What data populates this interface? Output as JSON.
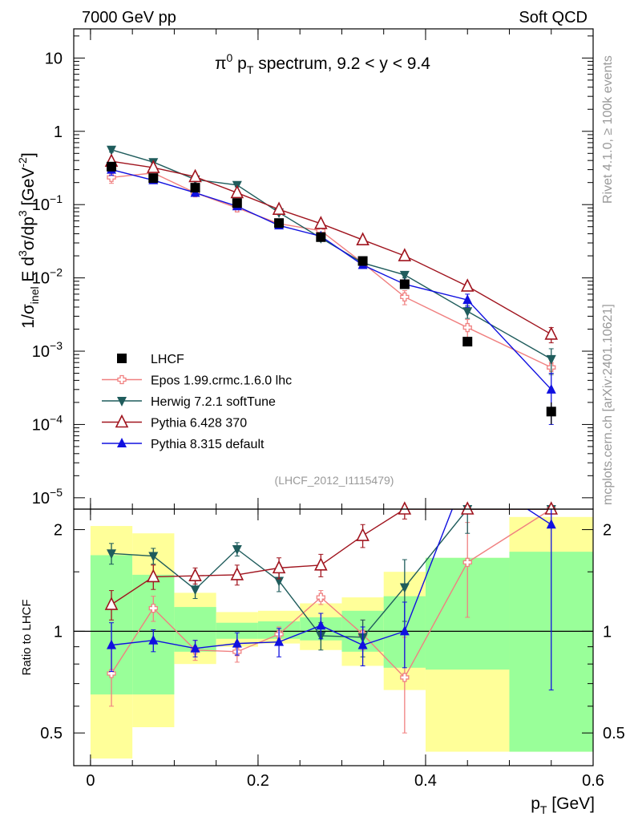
{
  "header": {
    "energy": "7000 GeV pp",
    "process": "Soft QCD"
  },
  "side": {
    "rivet": "Rivet 4.1.0, ≥ 100k events",
    "mcplots": "mcplots.cern.ch [arXiv:2401.10621]"
  },
  "analysis_id": "(LHCF_2012_I1115479)",
  "chart_data": {
    "type": "scatter",
    "title": "π⁰ p_T spectrum, 9.2 < y < 9.4",
    "title_parts": {
      "pre": "π",
      "sup": "0",
      "mid": " p",
      "sub": "T",
      "post": " spectrum, 9.2 < y < 9.4"
    },
    "xlabel": "p_T [GeV]",
    "xlabel_parts": {
      "main": "p",
      "sub": "T",
      "post": " [GeV]"
    },
    "ylabel": "1/σ_inel E d³σ/dp³ [GeV⁻²]",
    "ylabel_parts": {
      "a": "1/σ",
      "b": "inel",
      "c": " E d",
      "d": "3",
      "e": "σ/dp",
      "f": "3",
      "g": " [GeV",
      "h": "-2",
      "i": "]"
    },
    "ratio_ylabel": "Ratio to LHCF",
    "xlim": [
      -0.02,
      0.6
    ],
    "ylim_log": [
      7e-06,
      25
    ],
    "ratio_ylim": [
      0.4,
      2.3
    ],
    "x_ticks": [
      0,
      0.2,
      0.4,
      0.6
    ],
    "x_tick_labels": [
      "0",
      "0.2",
      "0.4",
      "0.6"
    ],
    "y_ticks": [
      1e-05,
      0.0001,
      0.001,
      0.01,
      0.1,
      1,
      10
    ],
    "y_tick_labels": [
      {
        "b": "10",
        "e": "−5"
      },
      {
        "b": "10",
        "e": "−4"
      },
      {
        "b": "10",
        "e": "−3"
      },
      {
        "b": "10",
        "e": "−2"
      },
      {
        "b": "10",
        "e": "−1"
      },
      {
        "b": "1",
        "e": ""
      },
      {
        "b": "10",
        "e": ""
      }
    ],
    "ratio_ticks": [
      0.5,
      1,
      2
    ],
    "ratio_tick_labels": [
      "0.5",
      "1",
      "2"
    ],
    "bins": [
      [
        0.0,
        0.05
      ],
      [
        0.05,
        0.1
      ],
      [
        0.1,
        0.15
      ],
      [
        0.15,
        0.2
      ],
      [
        0.2,
        0.25
      ],
      [
        0.25,
        0.3
      ],
      [
        0.3,
        0.35
      ],
      [
        0.35,
        0.4
      ],
      [
        0.4,
        0.5
      ],
      [
        0.5,
        0.6
      ]
    ],
    "x": [
      0.025,
      0.075,
      0.125,
      0.175,
      0.225,
      0.275,
      0.325,
      0.375,
      0.45,
      0.55
    ],
    "band_yellow": [
      [
        0.42,
        2.05
      ],
      [
        0.52,
        1.95
      ],
      [
        0.8,
        1.3
      ],
      [
        0.9,
        1.14
      ],
      [
        0.92,
        1.15
      ],
      [
        0.88,
        1.21
      ],
      [
        0.79,
        1.26
      ],
      [
        0.67,
        1.5
      ],
      [
        0.44,
        1.65
      ],
      [
        0.44,
        2.18
      ]
    ],
    "band_green": [
      [
        0.65,
        1.68
      ],
      [
        0.65,
        1.47
      ],
      [
        0.87,
        1.18
      ],
      [
        0.95,
        1.06
      ],
      [
        0.95,
        1.07
      ],
      [
        0.94,
        1.1
      ],
      [
        0.87,
        1.15
      ],
      [
        0.78,
        1.27
      ],
      [
        0.77,
        1.65
      ],
      [
        0.44,
        1.72
      ]
    ],
    "series": [
      {
        "name": "LHCF",
        "color": "#000000",
        "marker": "square",
        "values": [
          0.33,
          0.23,
          0.17,
          0.105,
          0.056,
          0.036,
          0.017,
          0.0082,
          0.00135,
          0.00015
        ],
        "errors": [
          0.035,
          0.02,
          0.012,
          0.008,
          0.004,
          0.003,
          0.0015,
          0.0009,
          0.00015,
          5e-05
        ],
        "ratio": [
          1,
          1,
          1,
          1,
          1,
          1,
          1,
          1,
          1,
          1
        ],
        "ratio_err": [
          0,
          0,
          0,
          0,
          0,
          0,
          0,
          0,
          0,
          0
        ]
      },
      {
        "name": "Epos 1.99.crmc.1.6.0 lhc",
        "color": "#f08080",
        "marker": "cross",
        "values": [
          0.235,
          0.27,
          0.145,
          0.09,
          0.055,
          0.044,
          0.016,
          0.0055,
          0.0021,
          0.0006
        ],
        "errors": [
          0.04,
          0.02,
          0.01,
          0.01,
          0.004,
          0.005,
          0.002,
          0.0012,
          0.0006,
          0.0001
        ],
        "ratio": [
          0.75,
          1.17,
          0.88,
          0.87,
          0.98,
          1.26,
          0.98,
          0.73,
          1.6,
          2.3
        ],
        "ratio_err": [
          0.15,
          0.1,
          0.06,
          0.06,
          0.05,
          0.06,
          0.1,
          0.23,
          0.5,
          0.0
        ]
      },
      {
        "name": "Herwig 7.2.1 softTune",
        "color": "#1f5c5c",
        "marker": "triangle-down",
        "values": [
          0.56,
          0.38,
          0.22,
          0.185,
          0.078,
          0.035,
          0.016,
          0.011,
          0.0035,
          0.00078
        ],
        "errors": [
          0.04,
          0.03,
          0.015,
          0.01,
          0.005,
          0.003,
          0.0015,
          0.001,
          0.0007,
          0.0003
        ],
        "ratio": [
          1.7,
          1.67,
          1.33,
          1.75,
          1.41,
          0.97,
          0.96,
          1.35,
          2.3,
          2.3
        ],
        "ratio_err": [
          0.12,
          0.09,
          0.08,
          0.08,
          0.1,
          0.09,
          0.12,
          0.28,
          0.35,
          0.0
        ]
      },
      {
        "name": "Pythia 6.428 370",
        "color": "#a0141e",
        "marker": "triangle-up-open",
        "values": [
          0.39,
          0.32,
          0.24,
          0.145,
          0.086,
          0.055,
          0.033,
          0.02,
          0.0077,
          0.0017
        ],
        "errors": [
          0.03,
          0.02,
          0.015,
          0.01,
          0.005,
          0.004,
          0.002,
          0.0015,
          0.0008,
          0.0004
        ],
        "ratio": [
          1.2,
          1.45,
          1.46,
          1.47,
          1.54,
          1.57,
          1.92,
          2.3,
          2.3,
          2.3
        ],
        "ratio_err": [
          0.12,
          0.12,
          0.08,
          0.1,
          0.11,
          0.12,
          0.15,
          0.15,
          0.0,
          0.0
        ]
      },
      {
        "name": "Pythia 8.315 default",
        "color": "#1010e0",
        "marker": "triangle-up",
        "values": [
          0.3,
          0.215,
          0.145,
          0.095,
          0.052,
          0.037,
          0.015,
          0.0082,
          0.005,
          0.0003
        ],
        "errors": [
          0.05,
          0.02,
          0.01,
          0.008,
          0.004,
          0.003,
          0.0015,
          0.0008,
          0.001,
          0.0002
        ],
        "ratio": [
          0.91,
          0.94,
          0.89,
          0.92,
          0.93,
          1.04,
          0.91,
          1.0,
          3.0,
          2.07
        ],
        "ratio_err": [
          0.15,
          0.07,
          0.05,
          0.07,
          0.09,
          0.09,
          0.12,
          0.22,
          0.0,
          1.4
        ]
      }
    ]
  }
}
